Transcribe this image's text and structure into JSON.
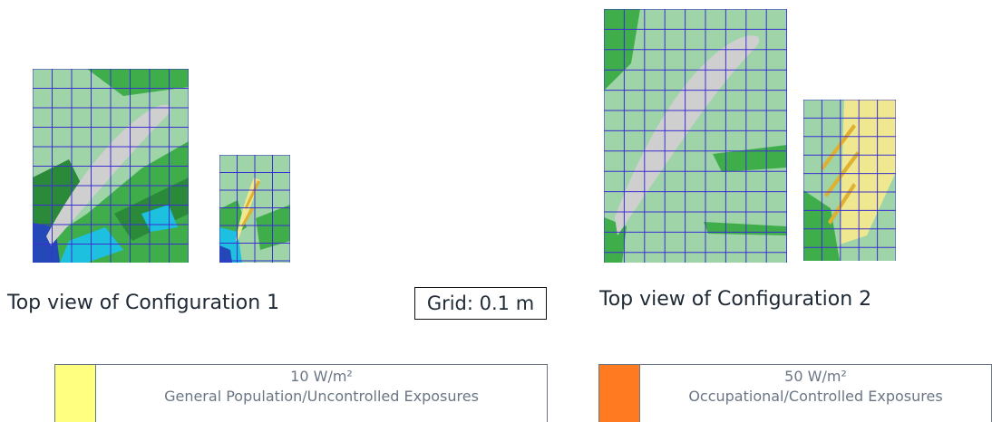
{
  "captions": {
    "config1": "Top view of Configuration 1",
    "config2": "Top view of Configuration 2",
    "grid": "Grid: 0.1 m"
  },
  "legend": [
    {
      "value": "10 W/m²",
      "description": "General Population/Uncontrolled Exposures",
      "color": "#ffff80"
    },
    {
      "value": "50 W/m²",
      "description": "Occupational/Controlled Exposures",
      "color": "#ff7a20"
    }
  ],
  "colors": {
    "grid_line": "#3b2fd0",
    "field_light": "#9ed4a8",
    "field_green": "#3fae4a",
    "field_dark": "#2a8a3a",
    "field_cyan": "#1ec0e0",
    "field_blue": "#2448b8",
    "beam_gray": "#cfcfcf",
    "beam_yellow": "#f0e890",
    "beam_gold": "#e0b030"
  }
}
